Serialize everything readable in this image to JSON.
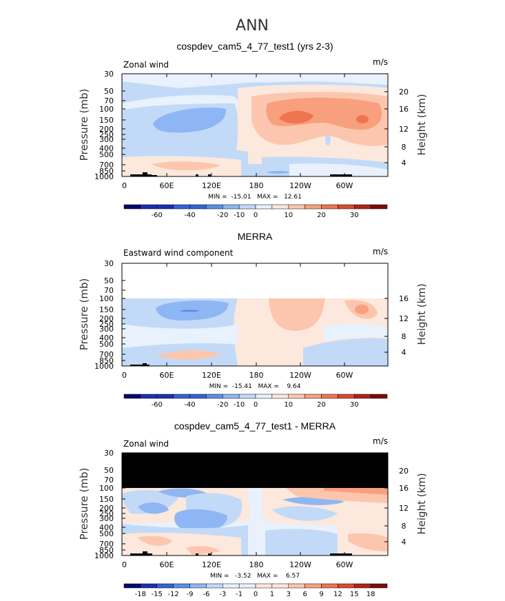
{
  "page": {
    "season": "ANN"
  },
  "x_ticks": [
    "0",
    "60E",
    "120E",
    "180",
    "120W",
    "60W"
  ],
  "y_ticks_pressure": [
    "30",
    "50",
    "70",
    "100",
    "150",
    "200",
    "250",
    "300",
    "400",
    "500",
    "700",
    "850",
    "1000"
  ],
  "y_ticks_height": [
    "20",
    "16",
    "12",
    "8",
    "4"
  ],
  "colors": {
    "standard": [
      "#08086b",
      "#1c2fb4",
      "#3461d6",
      "#5a8fe8",
      "#8fb6f4",
      "#c2daf8",
      "#e8f1fc",
      "#fce8dc",
      "#fcc6ae",
      "#f8a07e",
      "#ee7550",
      "#d84a2e",
      "#b02418",
      "#7a0c0c"
    ],
    "black": "#000000"
  },
  "chart_data": [
    {
      "type": "heatmap",
      "title": "cospdev_cam5_4_77_test1 (yrs 2-3)",
      "left_label": "Zonal wind",
      "units": "m/s",
      "ylabel": "Pressure (mb)",
      "ylabel2": "Height (km)",
      "stats": "MIN =  -15.01   MAX =   12.61",
      "min": -15.01,
      "max": 12.61,
      "colorbar_labels": [
        "-60",
        "-40",
        "-20",
        "-10",
        "0",
        "10",
        "20",
        "30"
      ]
    },
    {
      "type": "heatmap",
      "title": "MERRA",
      "left_label": "Eastward wind component",
      "units": "m/s",
      "ylabel": "Pressure (mb)",
      "ylabel2": "Height (km)",
      "stats": "MIN =  -15.41   MAX =    9.64",
      "min": -15.41,
      "max": 9.64,
      "colorbar_labels": [
        "-60",
        "-40",
        "-20",
        "-10",
        "0",
        "10",
        "20",
        "30"
      ]
    },
    {
      "type": "heatmap",
      "title": "cospdev_cam5_4_77_test1 - MERRA",
      "left_label": "Zonal wind",
      "units": "m/s",
      "ylabel": "Pressure (mb)",
      "ylabel2": "Height (km)",
      "stats": "MIN =   -3.52   MAX =    6.57",
      "min": -3.52,
      "max": 6.57,
      "colorbar_labels": [
        "-18",
        "-15",
        "-12",
        "-9",
        "-6",
        "-3",
        "-1",
        "0",
        "1",
        "3",
        "6",
        "9",
        "12",
        "15",
        "18"
      ]
    }
  ]
}
